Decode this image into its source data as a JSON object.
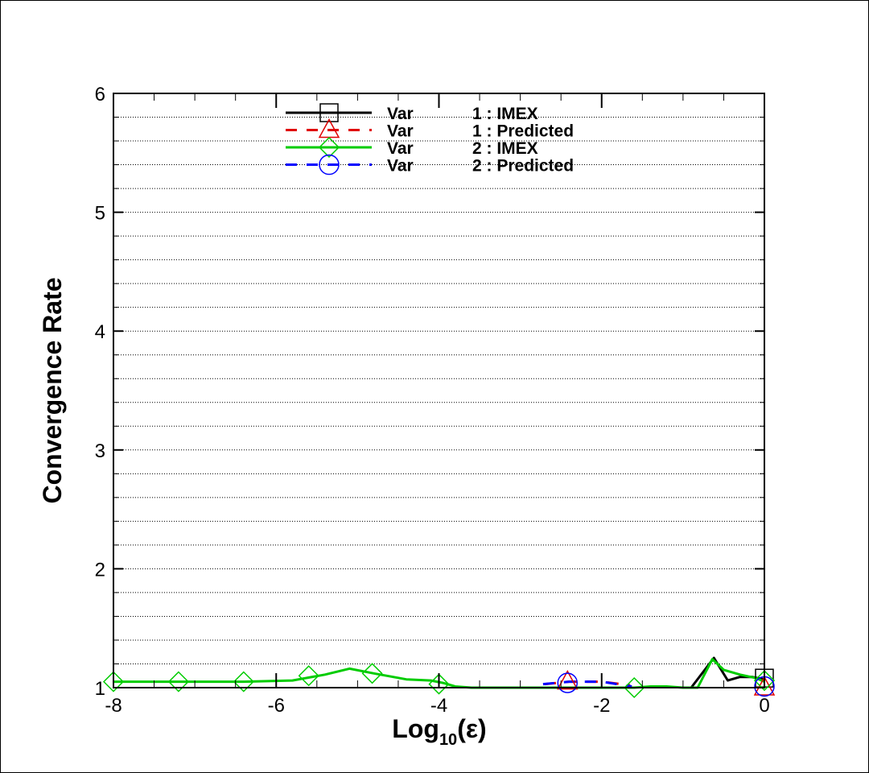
{
  "chart_data": {
    "type": "line",
    "xlabel": "Log10(ε)",
    "xlabel_parts": {
      "base": "Log",
      "sub": "10",
      "arg": "(ε)"
    },
    "ylabel": "Convergence Rate",
    "xlim": [
      -8,
      0
    ],
    "ylim": [
      1,
      6
    ],
    "x_ticks": [
      "-8",
      "-6",
      "-4",
      "-2",
      "0"
    ],
    "x_tick_values": [
      -8,
      -6,
      -4,
      -2,
      0
    ],
    "y_ticks": [
      "1",
      "2",
      "3",
      "4",
      "5",
      "6"
    ],
    "y_tick_values": [
      1,
      2,
      3,
      4,
      5,
      6
    ],
    "grid": "horizontal dotted",
    "legend_position": "top-center",
    "series": [
      {
        "name": "Var 1 : IMEX",
        "legend_var": "Var",
        "legend_label": "1 : IMEX",
        "color": "#000000",
        "dash": "solid",
        "marker": "square",
        "points": [
          [
            -0.9,
            1.0
          ],
          [
            -0.62,
            1.25
          ],
          [
            -0.45,
            1.06
          ],
          [
            -0.3,
            1.09
          ],
          [
            -0.15,
            1.09
          ],
          [
            0,
            1.07
          ]
        ],
        "marker_points": [
          [
            0,
            1.08
          ]
        ]
      },
      {
        "name": "Var 1 : Predicted",
        "legend_var": "Var",
        "legend_label": "1 : Predicted",
        "color": "#e00000",
        "dash": "dashed",
        "marker": "triangle",
        "points": [
          [
            -2.7,
            1.03
          ],
          [
            -2.4,
            1.05
          ],
          [
            -2.0,
            1.05
          ],
          [
            -1.65,
            1.02
          ]
        ],
        "marker_points": [
          [
            -2.42,
            1.05
          ],
          [
            0,
            1.0
          ]
        ]
      },
      {
        "name": "Var 2 : IMEX",
        "legend_var": "Var",
        "legend_label": "2 : IMEX",
        "color": "#00cc00",
        "dash": "solid",
        "marker": "diamond",
        "points": [
          [
            -8,
            1.05
          ],
          [
            -7.2,
            1.05
          ],
          [
            -6.4,
            1.05
          ],
          [
            -5.8,
            1.06
          ],
          [
            -5.4,
            1.11
          ],
          [
            -5.1,
            1.16
          ],
          [
            -4.8,
            1.12
          ],
          [
            -4.4,
            1.07
          ],
          [
            -4.1,
            1.06
          ],
          [
            -3.95,
            1.04
          ],
          [
            -3.8,
            1.01
          ],
          [
            -3.6,
            1.0
          ],
          [
            -1.6,
            1.0
          ],
          [
            -1.4,
            1.01
          ],
          [
            -1.2,
            1.01
          ],
          [
            -1.0,
            1.0
          ],
          [
            -0.82,
            1.0
          ],
          [
            -0.64,
            1.24
          ],
          [
            -0.5,
            1.15
          ],
          [
            -0.3,
            1.11
          ],
          [
            -0.1,
            1.08
          ],
          [
            0,
            1.05
          ]
        ],
        "marker_points": [
          [
            -8,
            1.05
          ],
          [
            -7.2,
            1.05
          ],
          [
            -6.4,
            1.05
          ],
          [
            -5.6,
            1.1
          ],
          [
            -4.82,
            1.12
          ],
          [
            -4.0,
            1.03
          ],
          [
            -1.6,
            1.0
          ],
          [
            0,
            1.06
          ]
        ]
      },
      {
        "name": "Var 2 : Predicted",
        "legend_var": "Var",
        "legend_label": "2 : Predicted",
        "color": "#0000ff",
        "dash": "dashed",
        "marker": "circle",
        "points": [
          [
            -2.72,
            1.03
          ],
          [
            -2.4,
            1.05
          ],
          [
            -2.0,
            1.05
          ],
          [
            -1.63,
            1.01
          ]
        ],
        "marker_points": [
          [
            -2.42,
            1.04
          ],
          [
            0,
            1.01
          ]
        ]
      }
    ]
  }
}
